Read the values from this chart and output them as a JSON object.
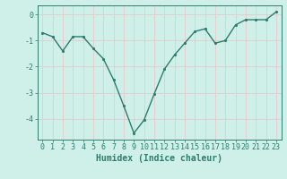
{
  "x": [
    0,
    1,
    2,
    3,
    4,
    5,
    6,
    7,
    8,
    9,
    10,
    11,
    12,
    13,
    14,
    15,
    16,
    17,
    18,
    19,
    20,
    21,
    22,
    23
  ],
  "y": [
    -0.7,
    -0.85,
    -1.4,
    -0.85,
    -0.85,
    -1.3,
    -1.7,
    -2.5,
    -3.5,
    -4.55,
    -4.05,
    -3.05,
    -2.1,
    -1.55,
    -1.1,
    -0.65,
    -0.55,
    -1.1,
    -1.0,
    -0.4,
    -0.2,
    -0.2,
    -0.2,
    0.1
  ],
  "bg_color": "#cef0e8",
  "grid_color": "#e8c8cc",
  "line_color": "#2d7d6e",
  "marker_color": "#2d7d6e",
  "xlabel": "Humidex (Indice chaleur)",
  "ylim": [
    -4.8,
    0.35
  ],
  "xlim": [
    -0.5,
    23.5
  ],
  "yticks": [
    0,
    -1,
    -2,
    -3,
    -4
  ],
  "xticks": [
    0,
    1,
    2,
    3,
    4,
    5,
    6,
    7,
    8,
    9,
    10,
    11,
    12,
    13,
    14,
    15,
    16,
    17,
    18,
    19,
    20,
    21,
    22,
    23
  ],
  "xtick_labels": [
    "0",
    "1",
    "2",
    "3",
    "4",
    "5",
    "6",
    "7",
    "8",
    "9",
    "10",
    "11",
    "12",
    "13",
    "14",
    "15",
    "16",
    "17",
    "18",
    "19",
    "20",
    "21",
    "22",
    "23"
  ],
  "font_family": "monospace",
  "xlabel_fontsize": 7,
  "tick_fontsize": 6,
  "line_width": 1.0,
  "marker_size": 2.5
}
